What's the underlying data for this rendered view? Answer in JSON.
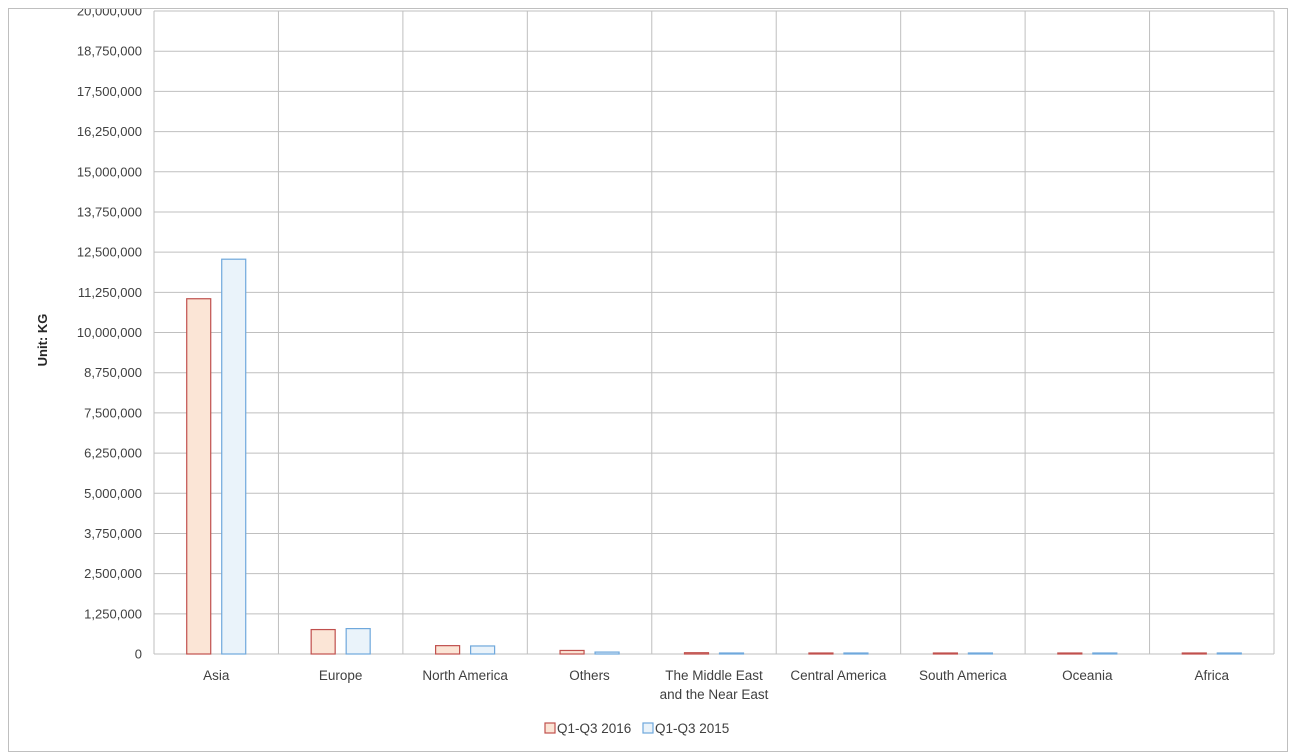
{
  "chart_data": {
    "type": "bar",
    "title": "",
    "xlabel": "",
    "ylabel": "Unit: KG",
    "ylim": [
      0,
      20000000
    ],
    "y_ticks": [
      0,
      1250000,
      2500000,
      3750000,
      5000000,
      6250000,
      7500000,
      8750000,
      10000000,
      11250000,
      12500000,
      13750000,
      15000000,
      16250000,
      17500000,
      18750000,
      20000000
    ],
    "y_tick_labels": [
      "0",
      "1,250,000",
      "2,500,000",
      "3,750,000",
      "5,000,000",
      "6,250,000",
      "7,500,000",
      "8,750,000",
      "10,000,000",
      "11,250,000",
      "12,500,000",
      "13,750,000",
      "15,000,000",
      "16,250,000",
      "17,500,000",
      "18,750,000",
      "20,000,000"
    ],
    "grid": true,
    "legend_position": "bottom",
    "categories": [
      [
        "Asia"
      ],
      [
        "Europe"
      ],
      [
        "North America"
      ],
      [
        "Others"
      ],
      [
        "The Middle East",
        "and the Near East"
      ],
      [
        "Central America"
      ],
      [
        "South America"
      ],
      [
        "Oceania"
      ],
      [
        "Africa"
      ]
    ],
    "series": [
      {
        "name": "Q1-Q3 2016",
        "fill": "#fbe5d6",
        "stroke": "#c0504d",
        "values": [
          11050000,
          760000,
          260000,
          110000,
          40000,
          10000,
          10000,
          10000,
          10000
        ]
      },
      {
        "name": "Q1-Q3 2015",
        "fill": "#eaf3fa",
        "stroke": "#6fa8dc",
        "values": [
          12280000,
          790000,
          250000,
          60000,
          30000,
          10000,
          10000,
          10000,
          10000
        ]
      }
    ]
  }
}
